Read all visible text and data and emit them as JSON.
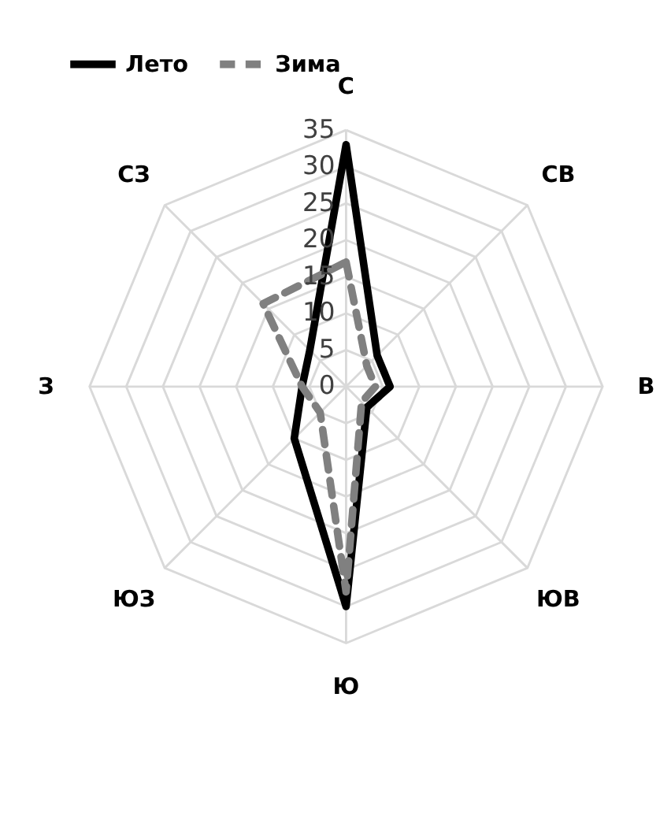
{
  "chart_data": {
    "type": "radar",
    "categories": [
      "С",
      "СВ",
      "В",
      "ЮВ",
      "Ю",
      "ЮЗ",
      "З",
      "СЗ"
    ],
    "series": [
      {
        "name": "Лето",
        "color": "#000000",
        "line_style": "solid",
        "values": [
          33,
          6,
          6,
          4,
          30,
          10,
          6,
          7
        ]
      },
      {
        "name": "Зима",
        "color": "#808080",
        "line_style": "dashed",
        "values": [
          17,
          4,
          4,
          3,
          28,
          5,
          6,
          16
        ]
      }
    ],
    "ylim": [
      0,
      35
    ],
    "yticks": [
      0,
      5,
      10,
      15,
      20,
      25,
      30,
      35
    ],
    "grid": true,
    "legend": "top"
  }
}
